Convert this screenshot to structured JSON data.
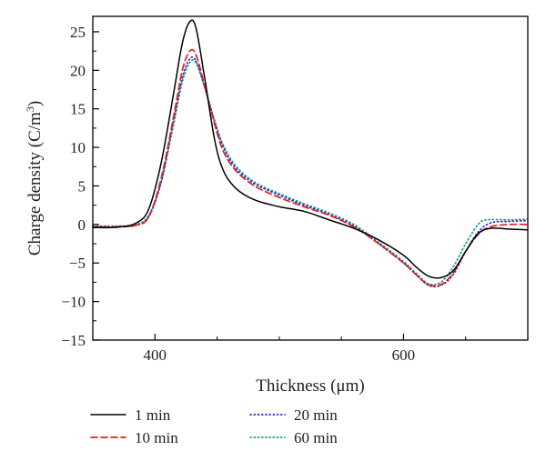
{
  "chart_data": {
    "type": "line",
    "title": "",
    "xlabel": "Thickness",
    "xlabel_unit": "(μm)",
    "ylabel": "Charge density",
    "ylabel_unit": "(C/m",
    "ylabel_unit_sup": "3",
    "ylabel_unit_close": ")",
    "xlim": [
      350,
      700
    ],
    "ylim": [
      -15,
      27
    ],
    "xticks": [
      400,
      600
    ],
    "yticks": [
      -15,
      -10,
      -5,
      0,
      5,
      10,
      15,
      20,
      25
    ],
    "grid": false,
    "legend_position": "bottom",
    "series": [
      {
        "name": "1 min",
        "color": "#000000",
        "style": "solid",
        "points": [
          [
            350,
            -0.4
          ],
          [
            370,
            -0.35
          ],
          [
            385,
            0.2
          ],
          [
            395,
            2
          ],
          [
            405,
            8
          ],
          [
            415,
            17
          ],
          [
            422,
            23.5
          ],
          [
            428,
            26.3
          ],
          [
            433,
            25.5
          ],
          [
            440,
            19
          ],
          [
            448,
            11
          ],
          [
            455,
            7
          ],
          [
            465,
            4.7
          ],
          [
            480,
            3.2
          ],
          [
            500,
            2.3
          ],
          [
            520,
            1.7
          ],
          [
            540,
            0.6
          ],
          [
            560,
            -0.5
          ],
          [
            580,
            -2
          ],
          [
            600,
            -4
          ],
          [
            610,
            -5.5
          ],
          [
            620,
            -6.7
          ],
          [
            630,
            -6.9
          ],
          [
            640,
            -6
          ],
          [
            650,
            -3.5
          ],
          [
            660,
            -1.2
          ],
          [
            670,
            -0.5
          ],
          [
            685,
            -0.6
          ],
          [
            700,
            -0.7
          ]
        ]
      },
      {
        "name": "10 min",
        "color": "#e02020",
        "style": "dashed",
        "points": [
          [
            350,
            -0.3
          ],
          [
            370,
            -0.3
          ],
          [
            385,
            -0.1
          ],
          [
            395,
            1
          ],
          [
            405,
            6
          ],
          [
            415,
            14
          ],
          [
            422,
            20
          ],
          [
            428,
            22.5
          ],
          [
            433,
            22
          ],
          [
            440,
            18
          ],
          [
            448,
            13
          ],
          [
            455,
            9.5
          ],
          [
            465,
            7
          ],
          [
            480,
            5
          ],
          [
            500,
            3.5
          ],
          [
            520,
            2.3
          ],
          [
            540,
            1.2
          ],
          [
            560,
            -0.3
          ],
          [
            580,
            -2.5
          ],
          [
            600,
            -5
          ],
          [
            610,
            -6.5
          ],
          [
            620,
            -7.8
          ],
          [
            630,
            -7.8
          ],
          [
            640,
            -6.3
          ],
          [
            650,
            -3.5
          ],
          [
            660,
            -1.3
          ],
          [
            670,
            -0.3
          ],
          [
            685,
            0
          ],
          [
            700,
            0
          ]
        ]
      },
      {
        "name": "20 min",
        "color": "#3333bb",
        "style": "dotted",
        "points": [
          [
            350,
            -0.3
          ],
          [
            370,
            -0.3
          ],
          [
            385,
            -0.1
          ],
          [
            395,
            1
          ],
          [
            405,
            5.5
          ],
          [
            415,
            13.5
          ],
          [
            422,
            19
          ],
          [
            428,
            21.5
          ],
          [
            433,
            21.2
          ],
          [
            440,
            17.8
          ],
          [
            448,
            13.3
          ],
          [
            455,
            10
          ],
          [
            465,
            7.3
          ],
          [
            480,
            5.3
          ],
          [
            500,
            3.8
          ],
          [
            520,
            2.5
          ],
          [
            540,
            1.3
          ],
          [
            560,
            -0.2
          ],
          [
            580,
            -2.5
          ],
          [
            600,
            -5
          ],
          [
            610,
            -6.5
          ],
          [
            620,
            -7.9
          ],
          [
            630,
            -7.9
          ],
          [
            640,
            -6.5
          ],
          [
            650,
            -3.5
          ],
          [
            660,
            -1
          ],
          [
            670,
            0.2
          ],
          [
            685,
            0.4
          ],
          [
            700,
            0.5
          ]
        ]
      },
      {
        "name": "60 min",
        "color": "#1a9a8a",
        "style": "dotted",
        "points": [
          [
            350,
            -0.2
          ],
          [
            370,
            -0.2
          ],
          [
            385,
            0
          ],
          [
            395,
            1.2
          ],
          [
            405,
            5.5
          ],
          [
            415,
            13
          ],
          [
            422,
            18.5
          ],
          [
            428,
            21
          ],
          [
            433,
            21
          ],
          [
            440,
            17.8
          ],
          [
            448,
            13.5
          ],
          [
            455,
            10.3
          ],
          [
            465,
            7.6
          ],
          [
            480,
            5.5
          ],
          [
            500,
            4
          ],
          [
            520,
            2.7
          ],
          [
            540,
            1.5
          ],
          [
            560,
            0
          ],
          [
            580,
            -2.3
          ],
          [
            600,
            -4.8
          ],
          [
            610,
            -6.3
          ],
          [
            620,
            -7.7
          ],
          [
            630,
            -7.5
          ],
          [
            640,
            -5.5
          ],
          [
            650,
            -2.5
          ],
          [
            660,
            0
          ],
          [
            667,
            0.6
          ],
          [
            685,
            0.6
          ],
          [
            700,
            0.7
          ]
        ]
      }
    ]
  }
}
